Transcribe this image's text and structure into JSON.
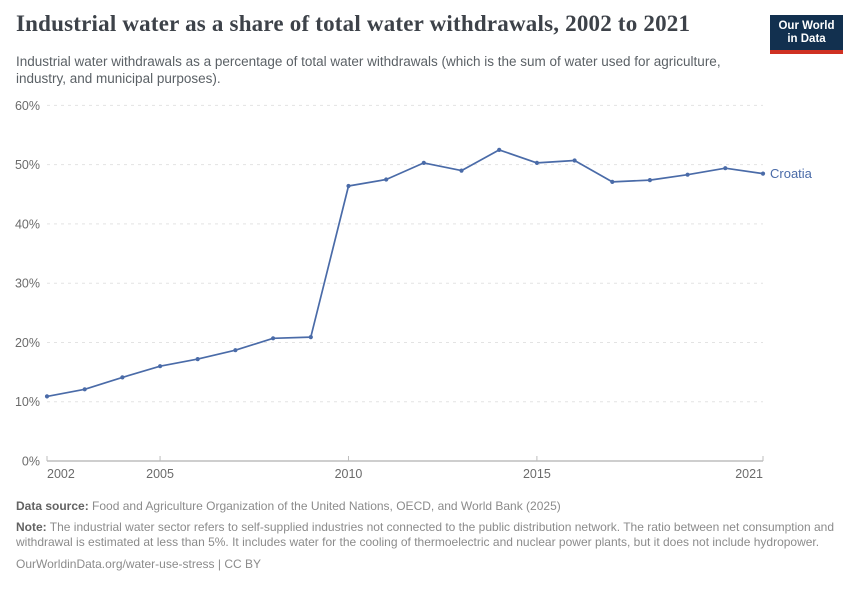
{
  "header": {
    "title": "Industrial water as a share of total water withdrawals, 2002 to 2021",
    "subtitle": "Industrial water withdrawals as a percentage of total water withdrawals (which is the sum of water used for agriculture, industry, and municipal purposes).",
    "logo_line1": "Our World",
    "logo_line2": "in Data"
  },
  "chart_data": {
    "type": "line",
    "title": "Industrial water as a share of total water withdrawals, 2002 to 2021",
    "x": [
      2002,
      2003,
      2004,
      2005,
      2006,
      2007,
      2008,
      2009,
      2010,
      2011,
      2012,
      2013,
      2014,
      2015,
      2016,
      2017,
      2018,
      2019,
      2020,
      2021
    ],
    "series": [
      {
        "name": "Croatia",
        "color": "#4a6ba8",
        "values": [
          10.9,
          12.1,
          14.1,
          16.0,
          17.2,
          18.7,
          20.7,
          20.9,
          46.4,
          47.5,
          50.3,
          49.0,
          52.5,
          50.3,
          50.7,
          47.1,
          47.4,
          48.3,
          49.4,
          48.5
        ]
      }
    ],
    "xlabel": "",
    "ylabel": "",
    "ylim": [
      0,
      60
    ],
    "xlim": [
      2002,
      2021
    ],
    "ytick_values": [
      0,
      10,
      20,
      30,
      40,
      50,
      60
    ],
    "ytick_labels": [
      "0%",
      "10%",
      "20%",
      "30%",
      "40%",
      "50%",
      "60%"
    ],
    "xtick_values": [
      2002,
      2005,
      2010,
      2015,
      2021
    ],
    "xtick_labels": [
      "2002",
      "2005",
      "2010",
      "2015",
      "2021"
    ],
    "grid": "horizontal-dashed",
    "legend_position": "end-of-line-label"
  },
  "footer": {
    "data_source_label": "Data source:",
    "data_source_text": "Food and Agriculture Organization of the United Nations, OECD, and World Bank (2025)",
    "note_label": "Note:",
    "note_text": "The industrial water sector refers to self-supplied industries not connected to the public distribution network. The ratio between net consumption and withdrawal is estimated at less than 5%. It includes water for the cooling of thermoelectric and nuclear power plants, but it does not include hydropower.",
    "citation_link": "OurWorldinData.org/water-use-stress",
    "citation_divider": "|",
    "citation_license": "CC BY"
  },
  "colors": {
    "line": "#4a6ba8",
    "title": "#3d4249",
    "subtitle": "#5b6166",
    "grid": "#e3e3e3",
    "axis": "#bdbdbd",
    "tick_text": "#6b6b6b",
    "footer_text": "#8b8b8b",
    "logo_bg": "#12304f",
    "logo_red": "#cf3122"
  }
}
